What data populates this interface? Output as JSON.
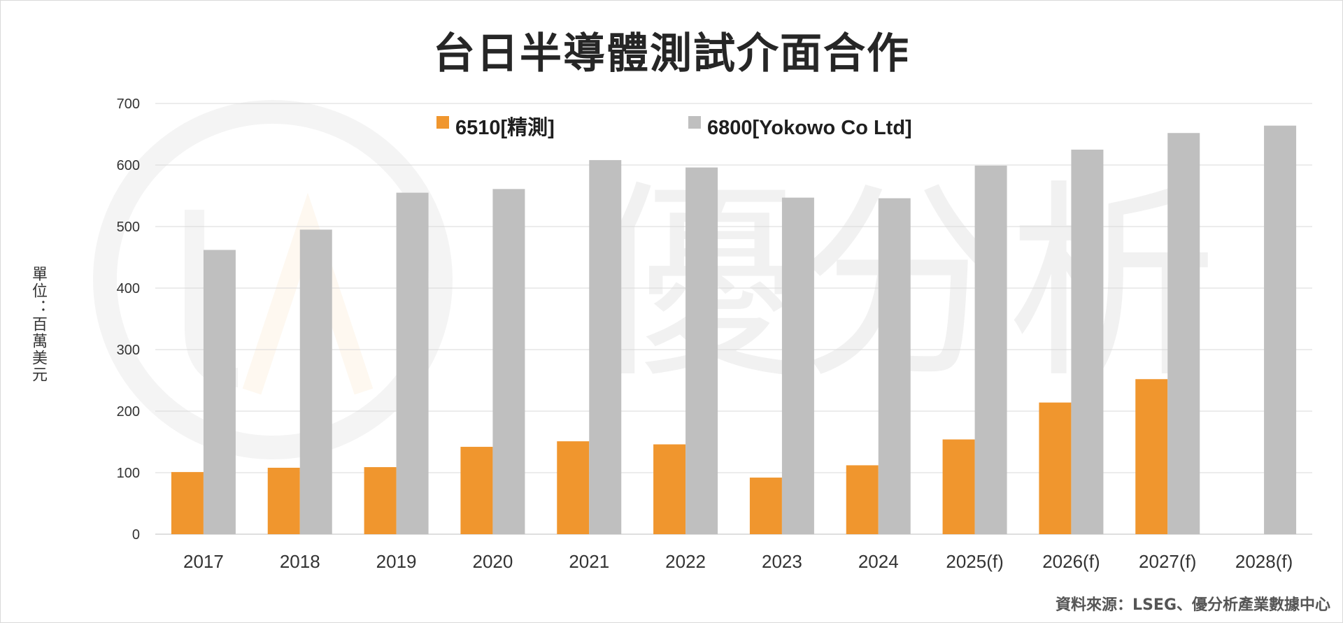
{
  "chart_data": {
    "type": "bar",
    "title": "台日半導體測試介面合作",
    "ylabel": "單位：百萬美元",
    "xlabel": "",
    "ylim": [
      0,
      700
    ],
    "yticks": [
      0,
      100,
      200,
      300,
      400,
      500,
      600,
      700
    ],
    "grid": true,
    "legend_position": "top",
    "categories": [
      "2017",
      "2018",
      "2019",
      "2020",
      "2021",
      "2022",
      "2023",
      "2024",
      "2025(f)",
      "2026(f)",
      "2027(f)",
      "2028(f)"
    ],
    "series": [
      {
        "name": "6510[精測]",
        "color": "#f0962e",
        "values": [
          101,
          108,
          109,
          142,
          151,
          146,
          92,
          112,
          154,
          214,
          252,
          null
        ]
      },
      {
        "name": "6800[Yokowo Co Ltd]",
        "color": "#bfbfbf",
        "values": [
          462,
          495,
          555,
          561,
          608,
          596,
          547,
          546,
          599,
          625,
          652,
          664
        ]
      }
    ],
    "source": "資料來源：LSEG、優分析產業數據中心",
    "watermark": "優分析"
  }
}
